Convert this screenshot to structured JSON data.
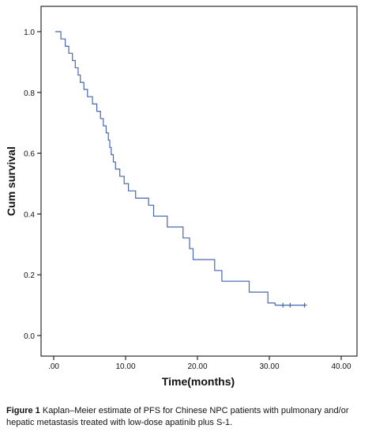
{
  "chart_data": {
    "type": "line",
    "xlabel": "Time(months)",
    "ylabel": "Cum survival",
    "xlim": [
      0,
      40
    ],
    "ylim": [
      0,
      1.0
    ],
    "x_ticks": [
      0,
      10,
      20,
      30,
      40
    ],
    "x_tick_labels": [
      ".00",
      "10.00",
      "20.00",
      "30.00",
      "40.00"
    ],
    "y_ticks": [
      0.0,
      0.2,
      0.4,
      0.6,
      0.8,
      1.0
    ],
    "y_tick_labels": [
      "0.0",
      "0.2",
      "0.4",
      "0.6",
      "0.8",
      "1.0"
    ],
    "grid": false,
    "series": [
      {
        "color": "#4a67b0",
        "step": true,
        "x": [
          0.2,
          1.0,
          1.6,
          2.1,
          2.6,
          3.0,
          3.4,
          3.7,
          4.2,
          4.7,
          5.4,
          6.0,
          6.5,
          6.9,
          7.3,
          7.6,
          7.8,
          8.0,
          8.3,
          8.6,
          9.2,
          9.8,
          10.4,
          11.4,
          13.2,
          13.9,
          15.8,
          18.0,
          18.9,
          19.4,
          20.8,
          22.4,
          23.4,
          25.0,
          27.2,
          28.9,
          29.8,
          30.8,
          35.0
        ],
        "y": [
          1.0,
          0.976,
          0.952,
          0.929,
          0.905,
          0.881,
          0.857,
          0.833,
          0.81,
          0.786,
          0.762,
          0.738,
          0.714,
          0.69,
          0.667,
          0.643,
          0.619,
          0.595,
          0.571,
          0.548,
          0.524,
          0.5,
          0.476,
          0.452,
          0.429,
          0.393,
          0.357,
          0.321,
          0.286,
          0.25,
          0.25,
          0.214,
          0.179,
          0.179,
          0.143,
          0.143,
          0.107,
          0.1,
          0.1
        ],
        "censored_x": [
          31.9,
          32.9,
          34.9
        ],
        "censored_y": [
          0.1,
          0.1,
          0.1
        ]
      }
    ]
  },
  "caption": {
    "label": "Figure 1",
    "text": " Kaplan–Meier estimate of PFS for Chinese NPC patients with pulmonary and/or hepatic metastasis treated with low-dose apatinib plus S-1."
  }
}
